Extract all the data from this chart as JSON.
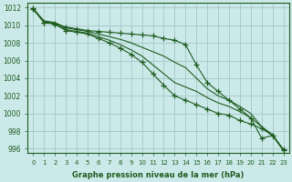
{
  "title": "Graphe pression niveau de la mer (hPa)",
  "background_color": "#cbe9e9",
  "grid_color": "#aacccc",
  "line_color": "#1e5c1e",
  "xlim": [
    -0.5,
    23.5
  ],
  "ylim": [
    995.5,
    1012.5
  ],
  "yticks": [
    996,
    998,
    1000,
    1002,
    1004,
    1006,
    1008,
    1010,
    1012
  ],
  "xticks": [
    0,
    1,
    2,
    3,
    4,
    5,
    6,
    7,
    8,
    9,
    10,
    11,
    12,
    13,
    14,
    15,
    16,
    17,
    18,
    19,
    20,
    21,
    22,
    23
  ],
  "series": [
    {
      "x": [
        0,
        1,
        2,
        3,
        4,
        5,
        6,
        7,
        8,
        9,
        10,
        11,
        12,
        13,
        14,
        15,
        16,
        17,
        18,
        19,
        20,
        21,
        22,
        23
      ],
      "y": [
        1011.8,
        1010.3,
        1010.2,
        1009.8,
        1009.6,
        1009.4,
        1009.3,
        1009.2,
        1009.1,
        1009.0,
        1008.9,
        1008.8,
        1008.5,
        1008.3,
        1007.8,
        1005.5,
        1003.5,
        1002.5,
        1001.5,
        1000.5,
        999.5,
        997.2,
        997.5,
        995.8
      ],
      "marker": "+",
      "markersize": 4
    },
    {
      "x": [
        0,
        1,
        2,
        3,
        4,
        5,
        6,
        7,
        8,
        9,
        10,
        11,
        12,
        13,
        14,
        15,
        16,
        17,
        18,
        19,
        20,
        21,
        22,
        23
      ],
      "y": [
        1011.8,
        1010.5,
        1010.3,
        1009.7,
        1009.5,
        1009.3,
        1009.0,
        1008.7,
        1008.4,
        1008.0,
        1007.5,
        1007.0,
        1006.5,
        1005.8,
        1005.2,
        1004.0,
        1002.8,
        1002.0,
        1001.5,
        1000.8,
        1000.0,
        998.5,
        997.6,
        995.9
      ],
      "marker": null,
      "markersize": 0
    },
    {
      "x": [
        0,
        1,
        2,
        3,
        4,
        5,
        6,
        7,
        8,
        9,
        10,
        11,
        12,
        13,
        14,
        15,
        16,
        17,
        18,
        19,
        20,
        21,
        22,
        23
      ],
      "y": [
        1011.9,
        1010.4,
        1010.2,
        1009.5,
        1009.3,
        1009.1,
        1008.7,
        1008.3,
        1007.8,
        1007.2,
        1006.5,
        1005.5,
        1004.5,
        1003.5,
        1003.0,
        1002.5,
        1001.8,
        1001.2,
        1000.8,
        1000.2,
        999.5,
        998.5,
        997.5,
        995.9
      ],
      "marker": null,
      "markersize": 0
    },
    {
      "x": [
        0,
        1,
        2,
        3,
        4,
        5,
        6,
        7,
        8,
        9,
        10,
        11,
        12,
        13,
        14,
        15,
        16,
        17,
        18,
        19,
        20,
        21,
        22,
        23
      ],
      "y": [
        1011.9,
        1010.3,
        1010.1,
        1009.4,
        1009.2,
        1009.0,
        1008.5,
        1008.0,
        1007.4,
        1006.7,
        1005.8,
        1004.5,
        1003.2,
        1002.0,
        1001.5,
        1001.0,
        1000.5,
        1000.0,
        999.8,
        999.2,
        998.8,
        998.3,
        997.5,
        995.9
      ],
      "marker": "+",
      "markersize": 4
    }
  ]
}
